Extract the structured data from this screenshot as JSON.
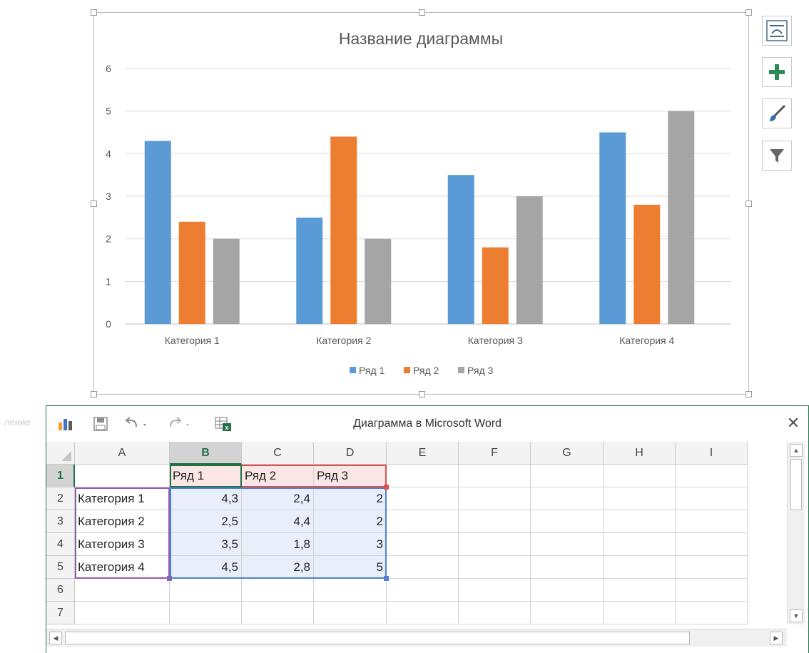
{
  "chart_data": {
    "type": "bar",
    "title": "Название диаграммы",
    "categories": [
      "Категория 1",
      "Категория 2",
      "Категория 3",
      "Категория 4"
    ],
    "series": [
      {
        "name": "Ряд 1",
        "values": [
          4.3,
          2.5,
          3.5,
          4.5
        ],
        "color": "#5b9bd5"
      },
      {
        "name": "Ряд 2",
        "values": [
          2.4,
          4.4,
          1.8,
          2.8
        ],
        "color": "#ed7d31"
      },
      {
        "name": "Ряд 3",
        "values": [
          2,
          2,
          3,
          5
        ],
        "color": "#a5a5a5"
      }
    ],
    "ylim": [
      0,
      6
    ],
    "yticks": [
      "0",
      "1",
      "2",
      "3",
      "4",
      "5",
      "6"
    ],
    "grid": true,
    "legend": "bottom"
  },
  "chart_buttons": {
    "layout": "chart-layout-icon",
    "elements": "plus-icon",
    "styles": "brush-icon",
    "filter": "filter-icon"
  },
  "sheet": {
    "title": "Диаграмма в Microsoft Word",
    "ghost_text": "ление",
    "close": "✕",
    "columns": [
      "A",
      "B",
      "C",
      "D",
      "E",
      "F",
      "G",
      "H",
      "I"
    ],
    "selected_column": "B",
    "rows": [
      {
        "n": "1",
        "cells": [
          "",
          "Ряд 1",
          "Ряд 2",
          "Ряд 3"
        ]
      },
      {
        "n": "2",
        "cells": [
          "Категория 1",
          "4,3",
          "2,4",
          "2"
        ]
      },
      {
        "n": "3",
        "cells": [
          "Категория 2",
          "2,5",
          "4,4",
          "2"
        ]
      },
      {
        "n": "4",
        "cells": [
          "Категория 3",
          "3,5",
          "1,8",
          "3"
        ]
      },
      {
        "n": "5",
        "cells": [
          "Категория 4",
          "4,5",
          "2,8",
          "5"
        ]
      },
      {
        "n": "6",
        "cells": [
          "",
          "",
          "",
          ""
        ]
      },
      {
        "n": "7",
        "cells": [
          "",
          "",
          "",
          ""
        ]
      }
    ],
    "toolbar_icons": [
      "chart-icon",
      "save-icon",
      "undo-icon",
      "redo-icon",
      "excel-icon"
    ]
  }
}
